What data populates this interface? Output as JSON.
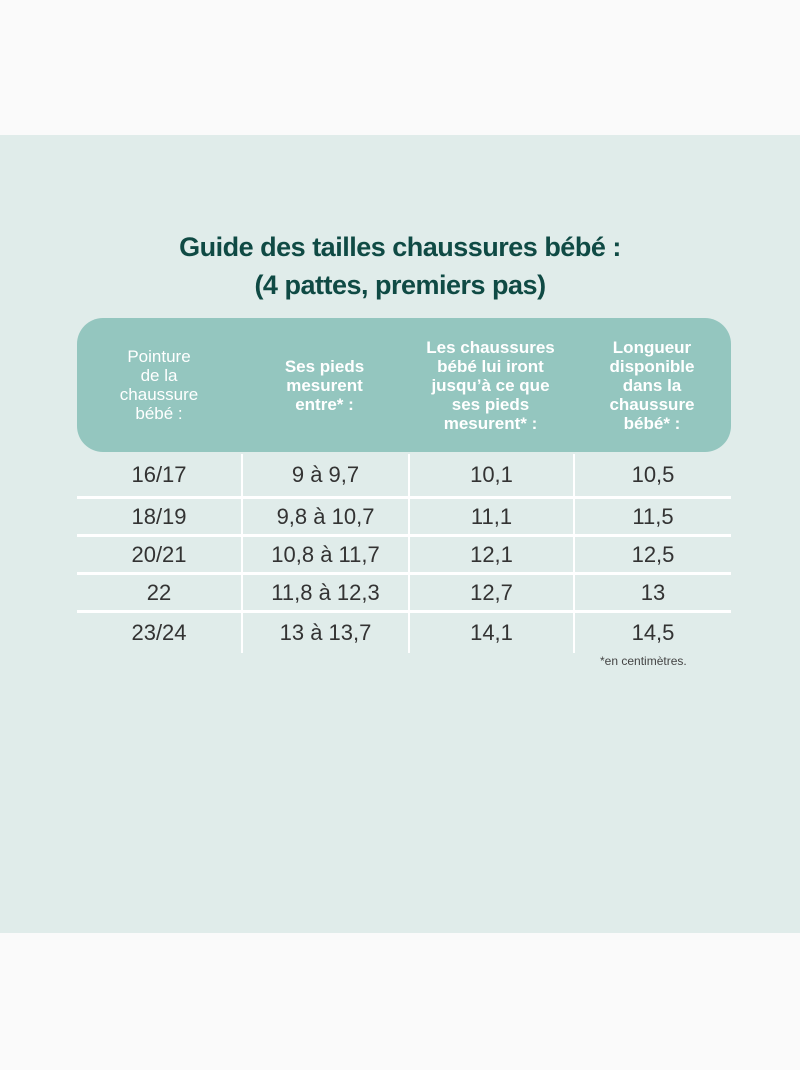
{
  "title": {
    "line1": "Guide des tailles chaussures bébé :",
    "line2": "(4 pattes, premiers pas)"
  },
  "headers": [
    "Pointure\nde la\nchaussure\nbébé :",
    "Ses pieds\nmesurent\nentre* :",
    "Les chaussures\nbébé lui iront\njusqu’à ce que\nses pieds\nmesurent* :",
    "Longueur\ndisponible\ndans la\nchaussure\nbébé* :"
  ],
  "rows": [
    [
      "16/17",
      "9 à 9,7",
      "10,1",
      "10,5"
    ],
    [
      "18/19",
      "9,8 à 10,7",
      "11,1",
      "11,5"
    ],
    [
      "20/21",
      "10,8 à 11,7",
      "12,1",
      "12,5"
    ],
    [
      "22",
      "11,8 à 12,3",
      "12,7",
      "13"
    ],
    [
      "23/24",
      "13 à 13,7",
      "14,1",
      "14,5"
    ]
  ],
  "footnote": "*en centimètres.",
  "colors": {
    "title": "#0f4a44",
    "header_bg": "#94c6bf",
    "panel_bg": "#e0ecea"
  }
}
